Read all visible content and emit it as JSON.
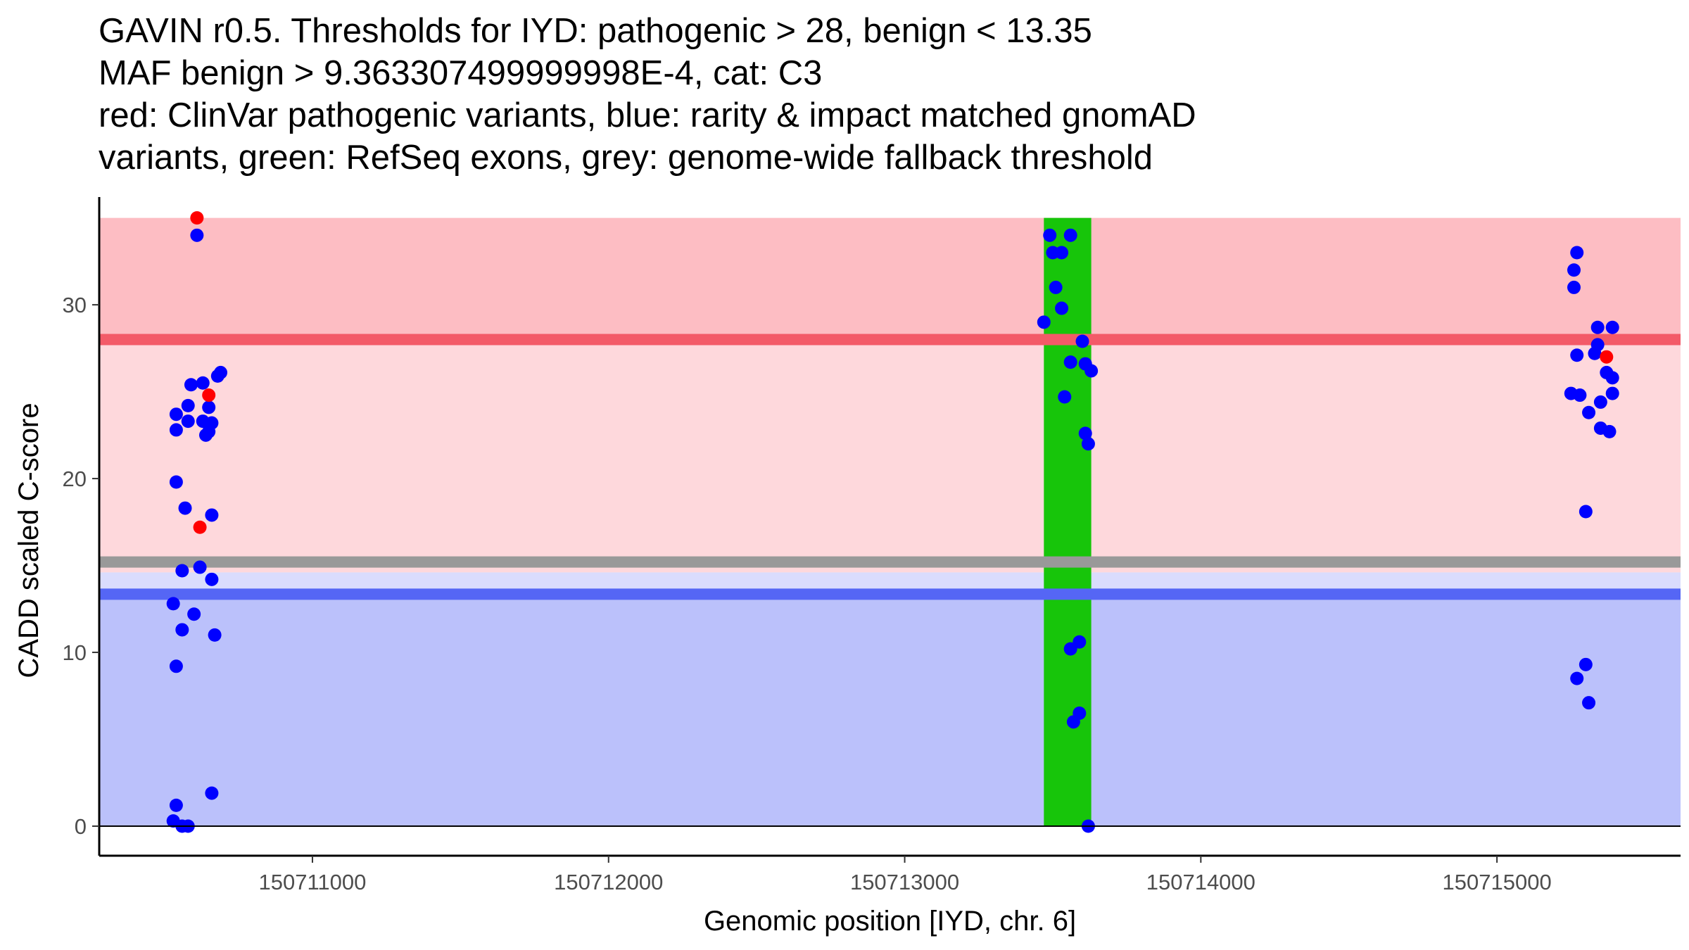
{
  "title_lines": [
    "GAVIN r0.5. Thresholds for IYD: pathogenic > 28, benign < 13.35",
    "MAF benign > 9.363307499999998E-4, cat: C3",
    "red: ClinVar pathogenic variants, blue: rarity & impact matched gnomAD",
    "variants, green: RefSeq exons, grey: genome-wide fallback threshold"
  ],
  "chart_data": {
    "type": "scatter",
    "xlabel": "Genomic position [IYD, chr. 6]",
    "ylabel": "CADD scaled C-score",
    "xlim": [
      150710280,
      150715620
    ],
    "ylim": [
      -1.7,
      36.2
    ],
    "x_ticks": [
      150711000,
      150712000,
      150713000,
      150714000,
      150715000
    ],
    "x_tick_labels": [
      "150711000",
      "150712000",
      "150713000",
      "150714000",
      "150715000"
    ],
    "y_ticks": [
      0,
      10,
      20,
      30
    ],
    "y_tick_labels": [
      "0",
      "10",
      "20",
      "30"
    ],
    "regions": {
      "pathogenic_high": {
        "y": [
          28,
          35
        ],
        "color": "#fdbdc3"
      },
      "pathogenic_low": {
        "y": [
          14.6,
          28
        ],
        "color": "#fed8dc"
      },
      "benign_light": {
        "y": [
          13.35,
          14.6
        ],
        "color": "#dadcfd"
      },
      "benign": {
        "y": [
          0,
          13.35
        ],
        "color": "#bbc1fb"
      }
    },
    "thresholds": {
      "pathogenic": {
        "value": 28,
        "color": "#f35a68"
      },
      "fallback": {
        "value": 15.2,
        "color": "#999999"
      },
      "benign": {
        "value": 13.35,
        "color": "#5566f5"
      }
    },
    "exons": [
      {
        "start": 150713470,
        "end": 150713630,
        "color": "#17c50a"
      }
    ],
    "series": [
      {
        "name": "ClinVar pathogenic variants",
        "color": "#ff0000",
        "points": [
          [
            150710610,
            35.0
          ],
          [
            150710650,
            24.8
          ],
          [
            150710620,
            17.2
          ],
          [
            150715370,
            27.0
          ]
        ]
      },
      {
        "name": "rarity & impact matched gnomAD variants",
        "color": "#0000ff",
        "points": [
          [
            150710610,
            34.0
          ],
          [
            150710540,
            23.7
          ],
          [
            150710540,
            22.8
          ],
          [
            150710580,
            24.2
          ],
          [
            150710580,
            23.3
          ],
          [
            150710590,
            25.4
          ],
          [
            150710630,
            25.5
          ],
          [
            150710630,
            23.3
          ],
          [
            150710640,
            22.5
          ],
          [
            150710650,
            22.7
          ],
          [
            150710650,
            24.1
          ],
          [
            150710660,
            23.2
          ],
          [
            150710680,
            25.9
          ],
          [
            150710690,
            26.1
          ],
          [
            150710540,
            19.8
          ],
          [
            150710570,
            18.3
          ],
          [
            150710660,
            17.9
          ],
          [
            150710560,
            14.7
          ],
          [
            150710620,
            14.9
          ],
          [
            150710660,
            14.2
          ],
          [
            150710530,
            12.8
          ],
          [
            150710600,
            12.2
          ],
          [
            150710560,
            11.3
          ],
          [
            150710670,
            11.0
          ],
          [
            150710540,
            9.2
          ],
          [
            150710660,
            1.9
          ],
          [
            150710540,
            1.2
          ],
          [
            150710530,
            0.3
          ],
          [
            150710560,
            0.0
          ],
          [
            150710580,
            0.0
          ],
          [
            150713490,
            34.0
          ],
          [
            150713560,
            34.0
          ],
          [
            150713500,
            33.0
          ],
          [
            150713530,
            33.0
          ],
          [
            150713510,
            31.0
          ],
          [
            150713530,
            29.8
          ],
          [
            150713470,
            29.0
          ],
          [
            150713600,
            27.9
          ],
          [
            150713560,
            26.7
          ],
          [
            150713610,
            26.6
          ],
          [
            150713630,
            26.2
          ],
          [
            150713540,
            24.7
          ],
          [
            150713610,
            22.6
          ],
          [
            150713620,
            22.0
          ],
          [
            150713590,
            10.6
          ],
          [
            150713560,
            10.2
          ],
          [
            150713590,
            6.5
          ],
          [
            150713570,
            6.0
          ],
          [
            150713620,
            0.0
          ],
          [
            150715270,
            33.0
          ],
          [
            150715260,
            32.0
          ],
          [
            150715260,
            31.0
          ],
          [
            150715340,
            28.7
          ],
          [
            150715390,
            28.7
          ],
          [
            150715340,
            27.7
          ],
          [
            150715330,
            27.2
          ],
          [
            150715270,
            27.1
          ],
          [
            150715370,
            26.1
          ],
          [
            150715390,
            25.8
          ],
          [
            150715250,
            24.9
          ],
          [
            150715280,
            24.8
          ],
          [
            150715390,
            24.9
          ],
          [
            150715350,
            24.4
          ],
          [
            150715310,
            23.8
          ],
          [
            150715350,
            22.9
          ],
          [
            150715380,
            22.7
          ],
          [
            150715300,
            18.1
          ],
          [
            150715300,
            9.3
          ],
          [
            150715270,
            8.5
          ],
          [
            150715310,
            7.1
          ]
        ]
      }
    ]
  }
}
